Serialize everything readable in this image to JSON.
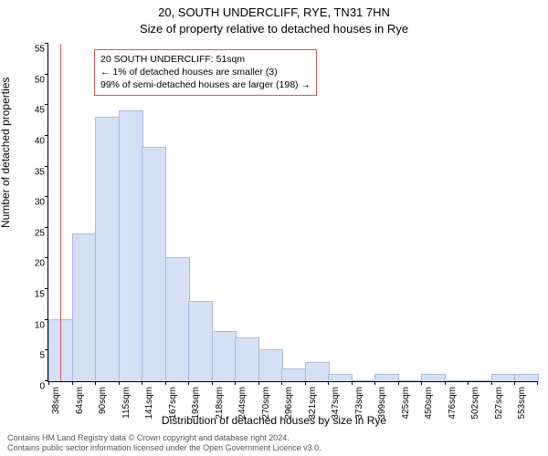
{
  "title": "20, SOUTH UNDERCLIFF, RYE, TN31 7HN",
  "subtitle": "Size of property relative to detached houses in Rye",
  "ylabel": "Number of detached properties",
  "xlabel": "Distribution of detached houses by size in Rye",
  "footer_line1": "Contains HM Land Registry data © Crown copyright and database right 2024.",
  "footer_line2": "Contains public sector information licensed under the Open Government Licence v3.0.",
  "chart": {
    "type": "histogram",
    "background_color": "#ffffff",
    "bar_fill": "#d6e0f5",
    "bar_stroke": "#a9b9e0",
    "marker_color": "#d9534f",
    "anno_border": "#d9534f",
    "ylim": [
      0,
      55
    ],
    "ytick_step": 5,
    "bins": [
      {
        "label": "38sqm",
        "value": 10
      },
      {
        "label": "64sqm",
        "value": 24
      },
      {
        "label": "90sqm",
        "value": 43
      },
      {
        "label": "115sqm",
        "value": 44
      },
      {
        "label": "141sqm",
        "value": 38
      },
      {
        "label": "167sqm",
        "value": 20
      },
      {
        "label": "193sqm",
        "value": 13
      },
      {
        "label": "218sqm",
        "value": 8
      },
      {
        "label": "244sqm",
        "value": 7
      },
      {
        "label": "270sqm",
        "value": 5
      },
      {
        "label": "296sqm",
        "value": 2
      },
      {
        "label": "321sqm",
        "value": 3
      },
      {
        "label": "347sqm",
        "value": 1
      },
      {
        "label": "373sqm",
        "value": 0
      },
      {
        "label": "399sqm",
        "value": 1
      },
      {
        "label": "425sqm",
        "value": 0
      },
      {
        "label": "450sqm",
        "value": 1
      },
      {
        "label": "476sqm",
        "value": 0
      },
      {
        "label": "502sqm",
        "value": 0
      },
      {
        "label": "527sqm",
        "value": 1
      },
      {
        "label": "553sqm",
        "value": 1
      }
    ],
    "marker_bin_index": 0.5,
    "annotation": {
      "line1": "20 SOUTH UNDERCLIFF: 51sqm",
      "line2": "← 1% of detached houses are smaller (3)",
      "line3": "99% of semi-detached houses are larger (198) →"
    }
  }
}
